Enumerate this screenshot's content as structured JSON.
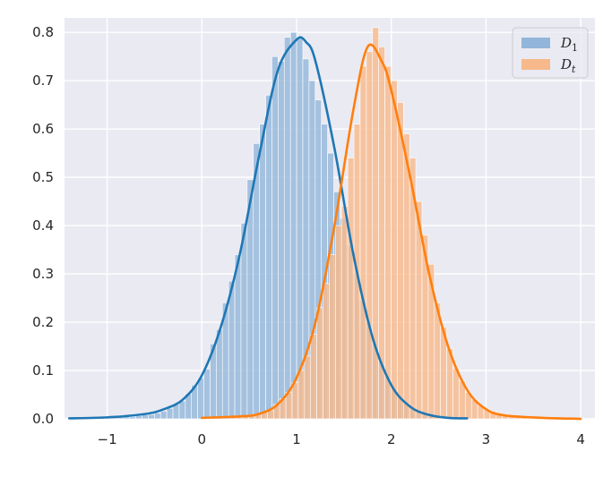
{
  "chart_data": {
    "type": "histogram",
    "title": "",
    "xlabel": "",
    "ylabel": "",
    "xlim": [
      -1.45,
      4.15
    ],
    "ylim": [
      0.0,
      0.83
    ],
    "x_ticks": [
      -1,
      0,
      1,
      2,
      3,
      4
    ],
    "x_tick_labels": [
      "−1",
      "0",
      "1",
      "2",
      "3",
      "4"
    ],
    "y_ticks": [
      0.0,
      0.1,
      0.2,
      0.3,
      0.4,
      0.5,
      0.6,
      0.7,
      0.8
    ],
    "y_tick_labels": [
      "0.0",
      "0.1",
      "0.2",
      "0.3",
      "0.4",
      "0.5",
      "0.6",
      "0.7",
      "0.8"
    ],
    "grid": true,
    "legend_position": "top-right",
    "background_color": "#eaeaf2",
    "series": [
      {
        "name": "D",
        "name_subscript": "1",
        "hist_color": "#92b6d9",
        "kde_color": "#1f77b4",
        "bin_width": 0.0653,
        "bins": [
          {
            "x": -1.35,
            "y": 0.002
          },
          {
            "x": -1.2847,
            "y": 0.002
          },
          {
            "x": -1.2194,
            "y": 0.003
          },
          {
            "x": -1.1541,
            "y": 0.003
          },
          {
            "x": -1.0888,
            "y": 0.004
          },
          {
            "x": -1.0235,
            "y": 0.005
          },
          {
            "x": -0.9582,
            "y": 0.005
          },
          {
            "x": -0.8929,
            "y": 0.004
          },
          {
            "x": -0.8276,
            "y": 0.004
          },
          {
            "x": -0.7623,
            "y": 0.004
          },
          {
            "x": -0.697,
            "y": 0.006
          },
          {
            "x": -0.6317,
            "y": 0.008
          },
          {
            "x": -0.5664,
            "y": 0.009
          },
          {
            "x": -0.5011,
            "y": 0.012
          },
          {
            "x": -0.4358,
            "y": 0.016
          },
          {
            "x": -0.3705,
            "y": 0.022
          },
          {
            "x": -0.3052,
            "y": 0.03
          },
          {
            "x": -0.2399,
            "y": 0.037
          },
          {
            "x": -0.1746,
            "y": 0.052
          },
          {
            "x": -0.1093,
            "y": 0.07
          },
          {
            "x": -0.044,
            "y": 0.085
          },
          {
            "x": 0.0213,
            "y": 0.103
          },
          {
            "x": 0.0866,
            "y": 0.155
          },
          {
            "x": 0.1519,
            "y": 0.185
          },
          {
            "x": 0.2172,
            "y": 0.24
          },
          {
            "x": 0.2825,
            "y": 0.285
          },
          {
            "x": 0.3478,
            "y": 0.34
          },
          {
            "x": 0.4131,
            "y": 0.405
          },
          {
            "x": 0.4784,
            "y": 0.495
          },
          {
            "x": 0.5437,
            "y": 0.57
          },
          {
            "x": 0.609,
            "y": 0.61
          },
          {
            "x": 0.6743,
            "y": 0.67
          },
          {
            "x": 0.7396,
            "y": 0.75
          },
          {
            "x": 0.8049,
            "y": 0.74
          },
          {
            "x": 0.8702,
            "y": 0.79
          },
          {
            "x": 0.9355,
            "y": 0.8
          },
          {
            "x": 1.0008,
            "y": 0.79
          },
          {
            "x": 1.0661,
            "y": 0.745
          },
          {
            "x": 1.1314,
            "y": 0.7
          },
          {
            "x": 1.1967,
            "y": 0.66
          },
          {
            "x": 1.262,
            "y": 0.61
          },
          {
            "x": 1.3273,
            "y": 0.55
          },
          {
            "x": 1.3926,
            "y": 0.47
          },
          {
            "x": 1.4579,
            "y": 0.415
          },
          {
            "x": 1.5232,
            "y": 0.36
          },
          {
            "x": 1.5885,
            "y": 0.3
          },
          {
            "x": 1.6538,
            "y": 0.245
          },
          {
            "x": 1.7191,
            "y": 0.2
          },
          {
            "x": 1.7844,
            "y": 0.155
          },
          {
            "x": 1.8497,
            "y": 0.12
          },
          {
            "x": 1.915,
            "y": 0.09
          },
          {
            "x": 1.9803,
            "y": 0.065
          },
          {
            "x": 2.0456,
            "y": 0.048
          },
          {
            "x": 2.1109,
            "y": 0.035
          },
          {
            "x": 2.1762,
            "y": 0.025
          },
          {
            "x": 2.2415,
            "y": 0.017
          },
          {
            "x": 2.3068,
            "y": 0.012
          },
          {
            "x": 2.3721,
            "y": 0.008
          },
          {
            "x": 2.4374,
            "y": 0.006
          },
          {
            "x": 2.5027,
            "y": 0.004
          },
          {
            "x": 2.568,
            "y": 0.003
          },
          {
            "x": 2.6333,
            "y": 0.002
          },
          {
            "x": 2.6986,
            "y": 0.001
          }
        ],
        "kde": {
          "x": [
            -1.4,
            -1.0,
            -0.6,
            -0.4,
            -0.2,
            0.0,
            0.2,
            0.4,
            0.6,
            0.8,
            1.0,
            1.1,
            1.2,
            1.4,
            1.6,
            1.8,
            2.0,
            2.2,
            2.4,
            2.6,
            2.8
          ],
          "y": [
            0.001,
            0.003,
            0.01,
            0.02,
            0.04,
            0.09,
            0.19,
            0.34,
            0.54,
            0.72,
            0.785,
            0.78,
            0.74,
            0.56,
            0.34,
            0.17,
            0.07,
            0.025,
            0.008,
            0.002,
            0.001
          ]
        }
      },
      {
        "name": "D",
        "name_subscript": "t",
        "hist_color": "#f7b98b",
        "kde_color": "#ff7f0e",
        "bin_width": 0.0653,
        "bins": [
          {
            "x": 0.3,
            "y": 0.003
          },
          {
            "x": 0.3653,
            "y": 0.004
          },
          {
            "x": 0.4306,
            "y": 0.006
          },
          {
            "x": 0.4959,
            "y": 0.007
          },
          {
            "x": 0.5612,
            "y": 0.01
          },
          {
            "x": 0.6265,
            "y": 0.013
          },
          {
            "x": 0.6918,
            "y": 0.018
          },
          {
            "x": 0.7571,
            "y": 0.03
          },
          {
            "x": 0.8224,
            "y": 0.042
          },
          {
            "x": 0.8877,
            "y": 0.055
          },
          {
            "x": 0.953,
            "y": 0.075
          },
          {
            "x": 1.0183,
            "y": 0.1
          },
          {
            "x": 1.0836,
            "y": 0.13
          },
          {
            "x": 1.1489,
            "y": 0.175
          },
          {
            "x": 1.2142,
            "y": 0.23
          },
          {
            "x": 1.2795,
            "y": 0.28
          },
          {
            "x": 1.3448,
            "y": 0.34
          },
          {
            "x": 1.4101,
            "y": 0.4
          },
          {
            "x": 1.4754,
            "y": 0.44
          },
          {
            "x": 1.5407,
            "y": 0.54
          },
          {
            "x": 1.606,
            "y": 0.61
          },
          {
            "x": 1.6713,
            "y": 0.73
          },
          {
            "x": 1.7366,
            "y": 0.76
          },
          {
            "x": 1.8019,
            "y": 0.81
          },
          {
            "x": 1.8672,
            "y": 0.77
          },
          {
            "x": 1.9325,
            "y": 0.73
          },
          {
            "x": 1.9978,
            "y": 0.7
          },
          {
            "x": 2.0631,
            "y": 0.655
          },
          {
            "x": 2.1284,
            "y": 0.59
          },
          {
            "x": 2.1937,
            "y": 0.54
          },
          {
            "x": 2.259,
            "y": 0.45
          },
          {
            "x": 2.3243,
            "y": 0.38
          },
          {
            "x": 2.3896,
            "y": 0.32
          },
          {
            "x": 2.4549,
            "y": 0.24
          },
          {
            "x": 2.5202,
            "y": 0.19
          },
          {
            "x": 2.5855,
            "y": 0.145
          },
          {
            "x": 2.6508,
            "y": 0.105
          },
          {
            "x": 2.7161,
            "y": 0.078
          },
          {
            "x": 2.7814,
            "y": 0.055
          },
          {
            "x": 2.8467,
            "y": 0.04
          },
          {
            "x": 2.912,
            "y": 0.028
          },
          {
            "x": 2.9773,
            "y": 0.02
          },
          {
            "x": 3.0426,
            "y": 0.016
          },
          {
            "x": 3.1079,
            "y": 0.012
          },
          {
            "x": 3.1732,
            "y": 0.009
          },
          {
            "x": 3.2385,
            "y": 0.006
          },
          {
            "x": 3.3038,
            "y": 0.004
          },
          {
            "x": 3.3691,
            "y": 0.003
          }
        ],
        "kde": {
          "x": [
            0.0,
            0.4,
            0.6,
            0.8,
            1.0,
            1.2,
            1.4,
            1.6,
            1.75,
            1.9,
            2.0,
            2.2,
            2.4,
            2.6,
            2.8,
            3.0,
            3.2,
            3.6,
            4.0
          ],
          "y": [
            0.002,
            0.005,
            0.01,
            0.03,
            0.085,
            0.2,
            0.4,
            0.64,
            0.77,
            0.74,
            0.68,
            0.5,
            0.3,
            0.15,
            0.06,
            0.02,
            0.007,
            0.002,
            0.0
          ]
        }
      }
    ]
  }
}
